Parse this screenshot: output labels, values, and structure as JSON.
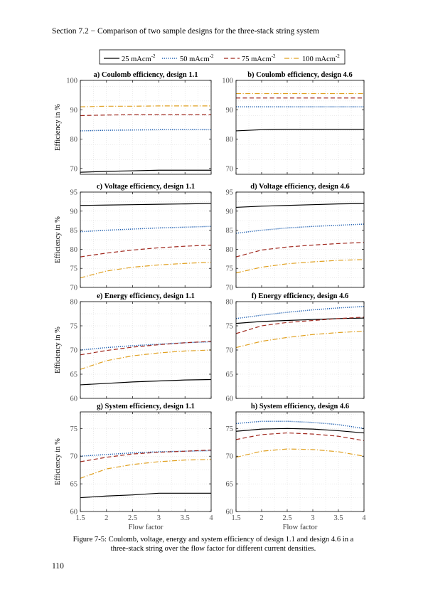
{
  "page": {
    "header": "Section 7.2 − Comparison of two sample designs for the three-stack string system",
    "caption_line1": "Figure 7-5: Coulomb, voltage, energy and system efficiency of design 1.1 and design 4.6 in a",
    "caption_line2": "three-stack string over the flow factor for different current densities.",
    "page_number": "110"
  },
  "legend": {
    "placement": "top-center",
    "entries": [
      {
        "label": "25 mAcm",
        "sup": "-2",
        "color": "#000000",
        "style": "solid"
      },
      {
        "label": "50 mAcm",
        "sup": "-2",
        "color": "#1f5fb0",
        "style": "dotted"
      },
      {
        "label": "75 mAcm",
        "sup": "-2",
        "color": "#a0281e",
        "style": "dashed"
      },
      {
        "label": "100 mAcm",
        "sup": "-2",
        "color": "#e0a020",
        "style": "dashdot"
      }
    ]
  },
  "colors": {
    "series_25": "#000000",
    "series_50": "#1f5fb0",
    "series_75": "#a0281e",
    "series_100": "#e0a020",
    "grid": "#d8d8d8"
  },
  "chart_data": [
    {
      "type": "line",
      "title": "a) Coulomb efficiency, design 1.1",
      "xlabel": "",
      "ylabel": "Efficiency in %",
      "xlim": [
        1.5,
        4
      ],
      "ylim": [
        68,
        100
      ],
      "yticks": [
        70,
        80,
        90,
        100
      ],
      "xticks": [
        1.5,
        2,
        2.5,
        3,
        3.5,
        4
      ],
      "show_xticklabels": false,
      "grid": true,
      "x": [
        1.5,
        2,
        2.5,
        3,
        3.5,
        4
      ],
      "series": [
        {
          "name": "25 mAcm-2",
          "values": [
            68.7,
            69.0,
            69.2,
            69.4,
            69.4,
            69.4
          ]
        },
        {
          "name": "50 mAcm-2",
          "values": [
            82.8,
            83.0,
            83.1,
            83.2,
            83.2,
            83.2
          ]
        },
        {
          "name": "75 mAcm-2",
          "values": [
            88.0,
            88.2,
            88.3,
            88.3,
            88.3,
            88.3
          ]
        },
        {
          "name": "100 mAcm-2",
          "values": [
            91.0,
            91.2,
            91.2,
            91.3,
            91.3,
            91.3
          ]
        }
      ]
    },
    {
      "type": "line",
      "title": "b) Coulomb efficiency, design 4.6",
      "xlabel": "",
      "ylabel": "",
      "xlim": [
        1.5,
        4
      ],
      "ylim": [
        68,
        100
      ],
      "yticks": [
        70,
        80,
        90,
        100
      ],
      "xticks": [
        1.5,
        2,
        2.5,
        3,
        3.5,
        4
      ],
      "show_xticklabels": false,
      "grid": true,
      "x": [
        1.5,
        2,
        2.5,
        3,
        3.5,
        4
      ],
      "series": [
        {
          "name": "25 mAcm-2",
          "values": [
            82.8,
            83.2,
            83.3,
            83.3,
            83.3,
            83.3
          ]
        },
        {
          "name": "50 mAcm-2",
          "values": [
            91.0,
            91.0,
            91.0,
            91.0,
            91.0,
            91.0
          ]
        },
        {
          "name": "75 mAcm-2",
          "values": [
            94.0,
            94.0,
            94.0,
            94.0,
            94.0,
            94.0
          ]
        },
        {
          "name": "100 mAcm-2",
          "values": [
            95.5,
            95.5,
            95.5,
            95.5,
            95.5,
            95.5
          ]
        }
      ]
    },
    {
      "type": "line",
      "title": "c) Voltage efficiency, design 1.1",
      "xlabel": "",
      "ylabel": "Efficiency in %",
      "xlim": [
        1.5,
        4
      ],
      "ylim": [
        70,
        95
      ],
      "yticks": [
        70,
        75,
        80,
        85,
        90,
        95
      ],
      "xticks": [
        1.5,
        2,
        2.5,
        3,
        3.5,
        4
      ],
      "show_xticklabels": false,
      "grid": true,
      "x": [
        1.5,
        2,
        2.5,
        3,
        3.5,
        4
      ],
      "series": [
        {
          "name": "25 mAcm-2",
          "values": [
            91.5,
            91.6,
            91.7,
            91.8,
            91.9,
            92.0
          ]
        },
        {
          "name": "50 mAcm-2",
          "values": [
            84.6,
            85.0,
            85.3,
            85.6,
            85.8,
            86.0
          ]
        },
        {
          "name": "75 mAcm-2",
          "values": [
            78.0,
            79.0,
            79.8,
            80.4,
            80.8,
            81.1
          ]
        },
        {
          "name": "100 mAcm-2",
          "values": [
            72.5,
            74.3,
            75.3,
            75.9,
            76.3,
            76.6
          ]
        }
      ]
    },
    {
      "type": "line",
      "title": "d) Voltage efficiency, design 4.6",
      "xlabel": "",
      "ylabel": "",
      "xlim": [
        1.5,
        4
      ],
      "ylim": [
        70,
        95
      ],
      "yticks": [
        70,
        75,
        80,
        85,
        90,
        95
      ],
      "xticks": [
        1.5,
        2,
        2.5,
        3,
        3.5,
        4
      ],
      "show_xticklabels": false,
      "grid": true,
      "x": [
        1.5,
        2,
        2.5,
        3,
        3.5,
        4
      ],
      "series": [
        {
          "name": "25 mAcm-2",
          "values": [
            91.0,
            91.3,
            91.5,
            91.7,
            91.9,
            92.0
          ]
        },
        {
          "name": "50 mAcm-2",
          "values": [
            84.2,
            85.0,
            85.6,
            86.0,
            86.3,
            86.6
          ]
        },
        {
          "name": "75 mAcm-2",
          "values": [
            78.0,
            79.8,
            80.6,
            81.1,
            81.5,
            81.8
          ]
        },
        {
          "name": "100 mAcm-2",
          "values": [
            73.8,
            75.3,
            76.2,
            76.7,
            77.1,
            77.3
          ]
        }
      ]
    },
    {
      "type": "line",
      "title": "e) Energy efficiency, design 1.1",
      "xlabel": "",
      "ylabel": "Efficiency in %",
      "xlim": [
        1.5,
        4
      ],
      "ylim": [
        60,
        80
      ],
      "yticks": [
        60,
        65,
        70,
        75,
        80
      ],
      "xticks": [
        1.5,
        2,
        2.5,
        3,
        3.5,
        4
      ],
      "show_xticklabels": false,
      "grid": true,
      "x": [
        1.5,
        2,
        2.5,
        3,
        3.5,
        4
      ],
      "series": [
        {
          "name": "25 mAcm-2",
          "values": [
            62.8,
            63.1,
            63.4,
            63.6,
            63.8,
            63.9
          ]
        },
        {
          "name": "50 mAcm-2",
          "values": [
            70.0,
            70.5,
            70.9,
            71.2,
            71.5,
            71.7
          ]
        },
        {
          "name": "75 mAcm-2",
          "values": [
            69.0,
            69.9,
            70.6,
            71.1,
            71.5,
            71.8
          ]
        },
        {
          "name": "100 mAcm-2",
          "values": [
            66.0,
            67.8,
            68.8,
            69.4,
            69.8,
            70.0
          ]
        }
      ]
    },
    {
      "type": "line",
      "title": "f) Energy efficiency, design 4.6",
      "xlabel": "",
      "ylabel": "",
      "xlim": [
        1.5,
        4
      ],
      "ylim": [
        60,
        80
      ],
      "yticks": [
        60,
        65,
        70,
        75,
        80
      ],
      "xticks": [
        1.5,
        2,
        2.5,
        3,
        3.5,
        4
      ],
      "show_xticklabels": false,
      "grid": true,
      "x": [
        1.5,
        2,
        2.5,
        3,
        3.5,
        4
      ],
      "series": [
        {
          "name": "25 mAcm-2",
          "values": [
            75.5,
            75.9,
            76.1,
            76.3,
            76.5,
            76.6
          ]
        },
        {
          "name": "50 mAcm-2",
          "values": [
            76.5,
            77.2,
            77.8,
            78.3,
            78.7,
            79.0
          ]
        },
        {
          "name": "75 mAcm-2",
          "values": [
            73.4,
            75.0,
            75.7,
            76.1,
            76.5,
            76.8
          ]
        },
        {
          "name": "100 mAcm-2",
          "values": [
            70.5,
            71.8,
            72.6,
            73.2,
            73.6,
            73.9
          ]
        }
      ]
    },
    {
      "type": "line",
      "title": "g) System efficiency, design 1.1",
      "xlabel": "Flow factor",
      "ylabel": "Efficiency in %",
      "xlim": [
        1.5,
        4
      ],
      "ylim": [
        60,
        78
      ],
      "yticks": [
        60,
        65,
        70,
        75
      ],
      "xticks": [
        1.5,
        2,
        2.5,
        3,
        3.5,
        4
      ],
      "show_xticklabels": true,
      "grid": true,
      "x": [
        1.5,
        2,
        2.5,
        3,
        3.5,
        4
      ],
      "series": [
        {
          "name": "25 mAcm-2",
          "values": [
            62.5,
            62.8,
            63.0,
            63.3,
            63.3,
            63.3
          ]
        },
        {
          "name": "50 mAcm-2",
          "values": [
            70.0,
            70.3,
            70.6,
            70.8,
            70.9,
            71.0
          ]
        },
        {
          "name": "75 mAcm-2",
          "values": [
            69.0,
            69.8,
            70.4,
            70.7,
            70.9,
            71.1
          ]
        },
        {
          "name": "100 mAcm-2",
          "values": [
            66.0,
            67.7,
            68.5,
            69.0,
            69.3,
            69.4
          ]
        }
      ]
    },
    {
      "type": "line",
      "title": "h) System efficiency, design 4.6",
      "xlabel": "Flow factor",
      "ylabel": "",
      "xlim": [
        1.5,
        4
      ],
      "ylim": [
        60,
        78
      ],
      "yticks": [
        60,
        65,
        70,
        75
      ],
      "xticks": [
        1.5,
        2,
        2.5,
        3,
        3.5,
        4
      ],
      "show_xticklabels": true,
      "grid": true,
      "x": [
        1.5,
        2,
        2.5,
        3,
        3.5,
        4
      ],
      "series": [
        {
          "name": "25 mAcm-2",
          "values": [
            74.5,
            74.9,
            75.0,
            74.9,
            74.6,
            74.2
          ]
        },
        {
          "name": "50 mAcm-2",
          "values": [
            75.9,
            76.3,
            76.3,
            76.1,
            75.7,
            75.0
          ]
        },
        {
          "name": "75 mAcm-2",
          "values": [
            73.0,
            73.9,
            74.2,
            74.0,
            73.6,
            72.8
          ]
        },
        {
          "name": "100 mAcm-2",
          "values": [
            69.8,
            70.9,
            71.3,
            71.2,
            70.8,
            70.0
          ]
        }
      ]
    }
  ]
}
